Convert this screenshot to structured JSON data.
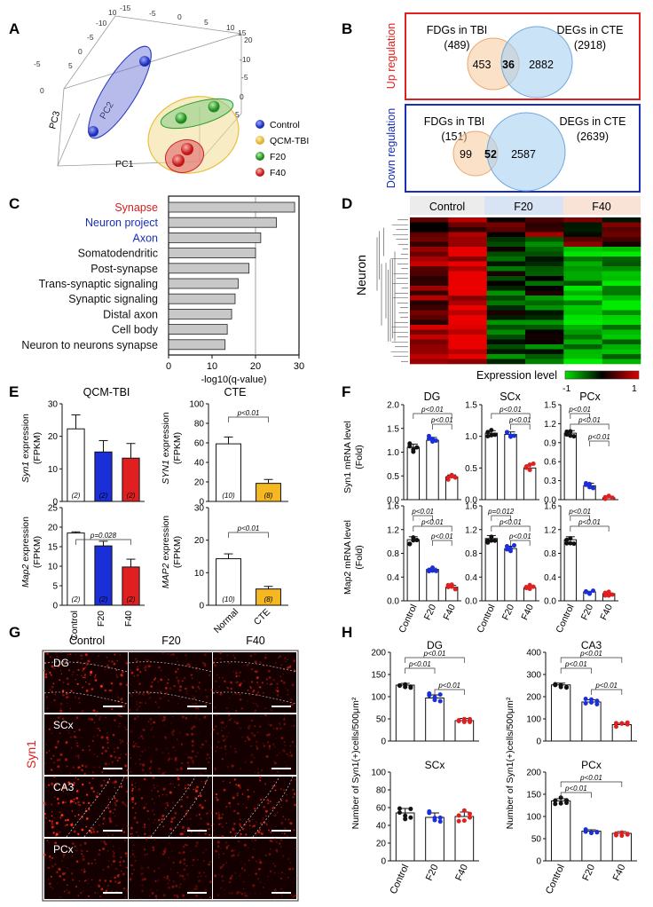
{
  "panels": {
    "A": "A",
    "B": "B",
    "C": "C",
    "D": "D",
    "E": "E",
    "F": "F",
    "G": "G",
    "H": "H"
  },
  "pca": {
    "axes": {
      "pc1": "PC1",
      "pc2": "PC2",
      "pc3": "PC3"
    },
    "ticks": [
      "10",
      "-15",
      "-10",
      "-5",
      "0",
      "5",
      "-5",
      "0",
      "-5",
      "0",
      "5",
      "10",
      "15",
      "20",
      "-10",
      "-5",
      "0",
      "5"
    ],
    "legend": [
      {
        "label": "Control",
        "color": "#2233bb"
      },
      {
        "label": "QCM-TBI",
        "color": "#e8c040"
      },
      {
        "label": "F20",
        "color": "#2a9a2a"
      },
      {
        "label": "F40",
        "color": "#cc2222"
      }
    ]
  },
  "venn": {
    "up": {
      "side": "Up regulation",
      "left_title": "FDGs in TBI",
      "left_total": "(489)",
      "right_title": "DEGs in CTE",
      "right_total": "(2918)",
      "left_only": "453",
      "overlap": "36",
      "right_only": "2882"
    },
    "down": {
      "side": "Down regulation",
      "left_title": "FDGs in TBI",
      "left_total": "(151)",
      "right_title": "DEGs in CTE",
      "right_total": "(2639)",
      "left_only": "99",
      "overlap": "52",
      "right_only": "2587"
    }
  },
  "go": {
    "xlabel": "-log10(q-value)",
    "ticks": [
      "0",
      "10",
      "20",
      "30"
    ],
    "terms": [
      {
        "label": "Synapse",
        "value": 29,
        "color": "#d42020"
      },
      {
        "label": "Neuron project",
        "value": 24.8,
        "color": "#1a2fb8"
      },
      {
        "label": "Axon",
        "value": 21.2,
        "color": "#1a2fb8"
      },
      {
        "label": "Somatodendritic",
        "value": 20,
        "color": "#111111"
      },
      {
        "label": "Post-synapse",
        "value": 18.5,
        "color": "#111111"
      },
      {
        "label": "Trans-synaptic signaling",
        "value": 16,
        "color": "#111111"
      },
      {
        "label": "Synaptic signaling",
        "value": 15.3,
        "color": "#111111"
      },
      {
        "label": "Distal axon",
        "value": 14.5,
        "color": "#111111"
      },
      {
        "label": "Cell body",
        "value": 13.5,
        "color": "#111111"
      },
      {
        "label": "Neuron to neurons synapse",
        "value": 13,
        "color": "#111111"
      }
    ]
  },
  "heatmap": {
    "groups": [
      "Control",
      "F20",
      "F40"
    ],
    "row_label": "Neuron",
    "legend_title": "Expression level",
    "legend_min": "-1",
    "legend_max": "1"
  },
  "fpkm": {
    "tbi_title": "QCM-TBI",
    "cte_title": "CTE",
    "syn1_label": "Syn1",
    "syn1_cte_label": "SYN1",
    "map2_label": "Map2",
    "map2_cte_label": "MAP2",
    "ylabel_suffix": " expression",
    "unit": "(FPKM)",
    "tbi_groups": [
      "Control",
      "F20",
      "F40"
    ],
    "cte_groups": [
      "Normal",
      "CTE"
    ],
    "p_map2_tbi": "p=0.028",
    "p_cte": "p<0.01",
    "n_tbi": [
      "(2)",
      "(2)",
      "(2)"
    ],
    "n_cte": [
      "(10)",
      "(8)"
    ]
  },
  "qpcr": {
    "regions": [
      "DG",
      "SCx",
      "PCx"
    ],
    "ylabel_syn1": "Syn1 mRNA level",
    "ylabel_map2": "Map2 mRNA level",
    "unit": "(Fold)",
    "groups": [
      "Control",
      "F20",
      "F40"
    ],
    "p_lt": "p<0.01",
    "p_012": "p=0.012"
  },
  "ihc": {
    "columns": [
      "Control",
      "F20",
      "F40"
    ],
    "rows": [
      "DG",
      "SCx",
      "CA3",
      "PCx"
    ],
    "stain": "Syn1"
  },
  "counts": {
    "ylabel": "Number of Syn1(+)cells/500μm²",
    "groups": [
      "Control",
      "F20",
      "F40"
    ],
    "p_lt": "p<0.01"
  },
  "chart_data": [
    {
      "type": "bar",
      "title": "QCM-TBI",
      "ylabel": "Syn1 expression (FPKM)",
      "categories": [
        "Control",
        "F20",
        "F40"
      ],
      "values": [
        22.3,
        15.2,
        13.3
      ],
      "errors": [
        4.3,
        3.5,
        4.5
      ],
      "ylim": [
        0,
        30
      ]
    },
    {
      "type": "bar",
      "title": "CTE",
      "ylabel": "SYN1 expression (FPKM)",
      "categories": [
        "Normal",
        "CTE"
      ],
      "values": [
        59,
        18.5
      ],
      "errors": [
        7,
        4
      ],
      "ylim": [
        0,
        100
      ]
    },
    {
      "type": "bar",
      "title": "",
      "ylabel": "Map2 expression (FPKM)",
      "categories": [
        "Control",
        "F20",
        "F40"
      ],
      "values": [
        18.5,
        15.2,
        9.8
      ],
      "errors": [
        0.3,
        1.2,
        2
      ],
      "ylim": [
        0,
        25
      ]
    },
    {
      "type": "bar",
      "title": "",
      "ylabel": "MAP2 expression (FPKM)",
      "categories": [
        "Normal",
        "CTE"
      ],
      "values": [
        14.3,
        5
      ],
      "errors": [
        1.5,
        0.8
      ],
      "ylim": [
        0,
        30
      ]
    },
    {
      "type": "bar",
      "title": "DG",
      "ylabel": "Syn1 mRNA level (Fold)",
      "categories": [
        "Control",
        "F20",
        "F40"
      ],
      "values": [
        1.1,
        1.25,
        0.48
      ],
      "errors": [
        0.07,
        0.06,
        0.04
      ],
      "ylim": [
        0,
        2.0
      ]
    },
    {
      "type": "bar",
      "title": "SCx",
      "ylabel": "Syn1 mRNA level (Fold)",
      "categories": [
        "Control",
        "F20",
        "F40"
      ],
      "values": [
        1.05,
        1.03,
        0.5
      ],
      "errors": [
        0.04,
        0.04,
        0.05
      ],
      "ylim": [
        0,
        1.5
      ]
    },
    {
      "type": "bar",
      "title": "PCx",
      "ylabel": "Syn1 mRNA level (Fold)",
      "categories": [
        "Control",
        "F20",
        "F40"
      ],
      "values": [
        1.05,
        0.22,
        0.03
      ],
      "errors": [
        0.04,
        0.04,
        0.01
      ],
      "ylim": [
        0,
        1.5
      ]
    },
    {
      "type": "bar",
      "title": "DG",
      "ylabel": "Map2 mRNA level (Fold)",
      "categories": [
        "Control",
        "F20",
        "F40"
      ],
      "values": [
        1.03,
        0.53,
        0.23
      ],
      "errors": [
        0.05,
        0.02,
        0.03
      ],
      "ylim": [
        0,
        1.6
      ]
    },
    {
      "type": "bar",
      "title": "SCx",
      "ylabel": "Map2 mRNA level (Fold)",
      "categories": [
        "Control",
        "F20",
        "F40"
      ],
      "values": [
        1.05,
        0.88,
        0.22
      ],
      "errors": [
        0.05,
        0.04,
        0.03
      ],
      "ylim": [
        0,
        1.6
      ]
    },
    {
      "type": "bar",
      "title": "PCx",
      "ylabel": "Map2 mRNA level (Fold)",
      "categories": [
        "Control",
        "F20",
        "F40"
      ],
      "values": [
        1.03,
        0.15,
        0.12
      ],
      "errors": [
        0.05,
        0.01,
        0.01
      ],
      "ylim": [
        0,
        1.6
      ]
    },
    {
      "type": "bar",
      "title": "DG",
      "ylabel": "Number of Syn1(+)cells/500μm²",
      "categories": [
        "Control",
        "F20",
        "F40"
      ],
      "values": [
        126,
        97,
        46
      ],
      "errors": [
        4,
        7,
        5
      ],
      "ylim": [
        0,
        200
      ]
    },
    {
      "type": "bar",
      "title": "CA3",
      "ylabel": "Number of Syn1(+)cells/500μm²",
      "categories": [
        "Control",
        "F20",
        "F40"
      ],
      "values": [
        253,
        176,
        74
      ],
      "errors": [
        8,
        10,
        6
      ],
      "ylim": [
        0,
        400
      ]
    },
    {
      "type": "bar",
      "title": "SCx",
      "ylabel": "Number of Syn1(+)cells/500μm²",
      "categories": [
        "Control",
        "F20",
        "F40"
      ],
      "values": [
        54,
        49,
        50
      ],
      "errors": [
        5,
        5,
        5
      ],
      "ylim": [
        0,
        100
      ]
    },
    {
      "type": "bar",
      "title": "PCx",
      "ylabel": "Number of Syn1(+)cells/500μm²",
      "categories": [
        "Control",
        "F20",
        "F40"
      ],
      "values": [
        135,
        67,
        62
      ],
      "errors": [
        5,
        3,
        4
      ],
      "ylim": [
        0,
        200
      ]
    }
  ]
}
